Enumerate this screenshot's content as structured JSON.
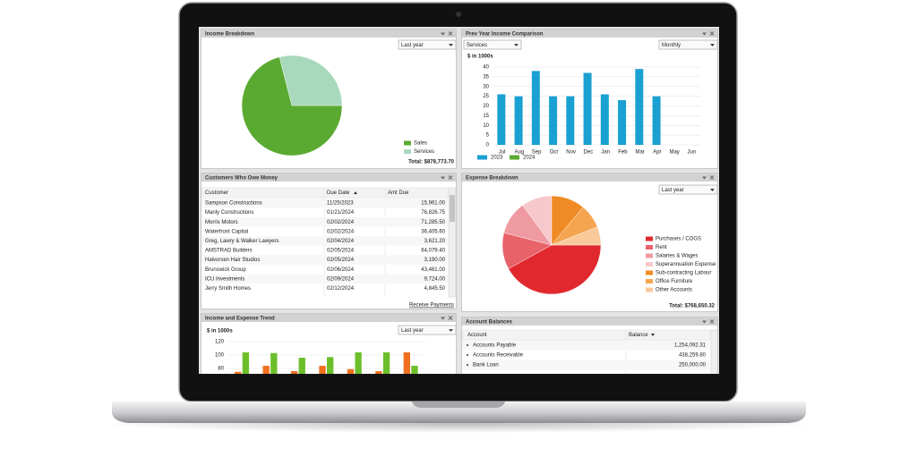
{
  "chart_data": [
    {
      "type": "pie",
      "title": "Income Breakdown",
      "dropdown": "Last year",
      "categories": [
        "Sales",
        "Services"
      ],
      "values": [
        71,
        29
      ],
      "colors": [
        "#5aaa32",
        "#a9d9bd"
      ],
      "total_label": "Total: $878,773.70"
    },
    {
      "type": "bar",
      "title": "Prev Year Income Comparison",
      "dropdowns": [
        "Services",
        "Monthly"
      ],
      "axis_label": "$ in 1000s",
      "categories": [
        "Jul",
        "Aug",
        "Sep",
        "Oct",
        "Nov",
        "Dec",
        "Jan",
        "Feb",
        "Mar",
        "Apr",
        "May",
        "Jun"
      ],
      "series": [
        {
          "name": "2023",
          "color": "#1aa0d2",
          "values": [
            26,
            25,
            38,
            25,
            25,
            37,
            26,
            23,
            39,
            25,
            null,
            null
          ]
        },
        {
          "name": "2024",
          "color": "#5aaa32",
          "values": [
            null,
            null,
            null,
            null,
            null,
            null,
            null,
            null,
            null,
            null,
            null,
            null
          ]
        }
      ],
      "ylim": [
        0,
        40
      ],
      "yticks": [
        0,
        5,
        10,
        15,
        20,
        25,
        30,
        35,
        40
      ],
      "grid": true
    },
    {
      "type": "pie",
      "title": "Expense Breakdown",
      "dropdown": "Last year",
      "categories": [
        "Purchases / COGS",
        "Rent",
        "Salaries & Wages",
        "Superannuation Expense",
        "Sub-contracting Labour",
        "Office Furniture",
        "Other Accounts"
      ],
      "values": [
        42,
        12,
        11,
        10,
        11,
        8,
        6
      ],
      "colors": [
        "#e0282e",
        "#e8626a",
        "#ef9aa0",
        "#f7c8cb",
        "#f08a24",
        "#f5a550",
        "#f9c99a"
      ],
      "total_label": "Total: $768,650.32"
    },
    {
      "type": "bar",
      "title": "Income and Expense Trend",
      "dropdown": "Last year",
      "axis_label": "$ in 1000s",
      "categories": [
        null,
        null,
        null,
        null,
        null,
        null,
        null
      ],
      "series": [
        {
          "color": "#f07020",
          "values": [
            75,
            84,
            76,
            84,
            79,
            76,
            104
          ]
        },
        {
          "color": "#6cbf2a",
          "values": [
            104,
            103,
            96,
            97,
            104,
            104,
            84
          ]
        }
      ],
      "ylim": [
        0,
        120
      ],
      "yticks": [
        80,
        100,
        120
      ],
      "grid": true
    }
  ],
  "customers": {
    "title": "Customers Who Owe Money",
    "columns": [
      "Customer",
      "Due Date",
      "Amt Due"
    ],
    "rows": [
      [
        "Sampson Constructions",
        "11/25/2023",
        "15,961.00"
      ],
      [
        "Manly Constructions",
        "01/21/2024",
        "76,826.75"
      ],
      [
        "Morris Motors",
        "02/02/2024",
        "71,285.50"
      ],
      [
        "Waterfront Capital",
        "02/02/2024",
        "36,405.60"
      ],
      [
        "Greg, Lawry & Walker Lawyers",
        "02/04/2024",
        "3,621.20"
      ],
      [
        "AMSTRAD Builders",
        "02/05/2024",
        "64,079.40"
      ],
      [
        "Halvorsen Hair Studios",
        "02/05/2024",
        "3,190.00"
      ],
      [
        "Brunswick Group",
        "02/06/2024",
        "43,461.00"
      ],
      [
        "ICU Investments",
        "02/09/2024",
        "9,724.00"
      ],
      [
        "Jerry Smith Homes",
        "02/12/2024",
        "4,845.50"
      ]
    ],
    "link": "Receive Payments"
  },
  "accounts": {
    "title": "Account Balances",
    "columns": [
      "Account",
      "Balance"
    ],
    "rows": [
      [
        "Accounts Payable",
        "1,254,092.31"
      ],
      [
        "Accounts Receivable",
        "438,259.80"
      ],
      [
        "Bank Loan",
        "250,000.00"
      ]
    ]
  }
}
